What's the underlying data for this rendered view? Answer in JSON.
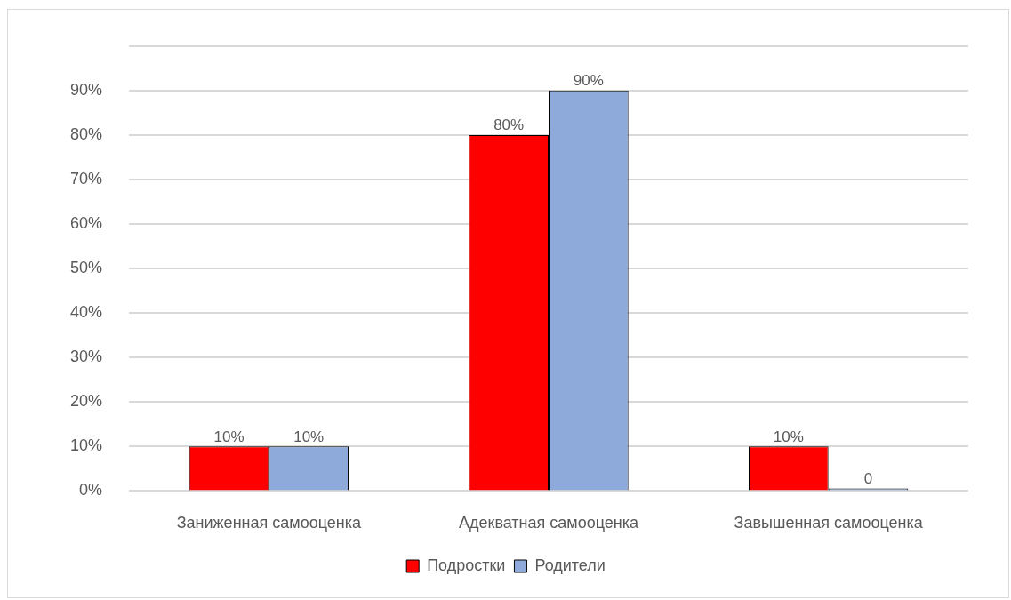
{
  "chart_data": {
    "type": "bar",
    "categories": [
      "Заниженная самооценка",
      "Адекватная самооценка",
      "Завышенная самооценка"
    ],
    "series": [
      {
        "name": "Подростки",
        "color": "#ff0000",
        "values": [
          10,
          80,
          10
        ],
        "value_labels": [
          "10%",
          "80%",
          "10%"
        ]
      },
      {
        "name": "Родители",
        "color": "#8eaadb",
        "values": [
          10,
          90,
          0
        ],
        "value_labels": [
          "10%",
          "90%",
          "0"
        ]
      }
    ],
    "ylim": [
      0,
      100
    ],
    "yticks": [
      {
        "value": 0,
        "label": "0%"
      },
      {
        "value": 10,
        "label": "10%"
      },
      {
        "value": 20,
        "label": "20%"
      },
      {
        "value": 30,
        "label": "30%"
      },
      {
        "value": 40,
        "label": "40%"
      },
      {
        "value": 50,
        "label": "50%"
      },
      {
        "value": 60,
        "label": "60%"
      },
      {
        "value": 70,
        "label": "70%"
      },
      {
        "value": 80,
        "label": "80%"
      },
      {
        "value": 90,
        "label": "90%"
      },
      {
        "value": 100,
        "label": null
      }
    ],
    "grid": "y",
    "legend": "bottom"
  }
}
